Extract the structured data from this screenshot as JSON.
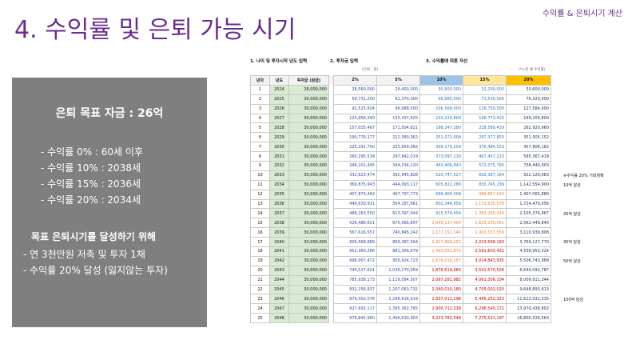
{
  "header": {
    "title": "4. 수익률 및 은퇴 가능 시기",
    "tag": "수익률 & 은퇴시기 계산"
  },
  "panel": {
    "goal": "은퇴 목표 자금 : 26억",
    "scenarios": [
      "- 수익률    0% : 60세 이후",
      "- 수익률 10% : 2038세",
      "- 수익률 15% : 2036세",
      "- 수익률 20% : 2034세"
    ],
    "plan_title": "목표 은퇴시기를 달성하기 위해",
    "plan": [
      "- 연 3천만원 저축 및 투자 1채",
      "- 수익률 20% 달성 (잃지않는 투자)"
    ]
  },
  "sheet": {
    "section1": "1. 나이 및 투자시작 년도 입력",
    "section2": "2. 투자금 입력",
    "section3": "3. 수익률에 따른 자산",
    "note_left": "(단위 : 원)",
    "note_right": "(*노란 셀 수익률)",
    "headers": [
      "년차",
      "년도",
      "투자금 (원금)",
      "2%",
      "5%",
      "10%",
      "15%",
      "20%"
    ],
    "rows": [
      [
        "1",
        "2024",
        "28,000,000",
        "28,560,000",
        "29,400,000",
        "30,800,000",
        "32,200,000",
        "33,600,000"
      ],
      [
        "2",
        "2025",
        "30,000,000",
        "59,731,200",
        "62,370,000",
        "66,880,000",
        "71,530,000",
        "76,320,000"
      ],
      [
        "3",
        "2026",
        "30,000,000",
        "91,525,824",
        "96,988,500",
        "106,568,000",
        "116,759,500",
        "127,584,000"
      ],
      [
        "4",
        "2027",
        "30,000,000",
        "123,956,340",
        "133,337,925",
        "150,224,800",
        "168,773,425",
        "189,100,800"
      ],
      [
        "5",
        "2028",
        "30,000,000",
        "157,035,467",
        "171,504,821",
        "198,247,280",
        "228,589,439",
        "262,920,960"
      ],
      [
        "6",
        "2029",
        "30,000,000",
        "190,776,177",
        "211,580,062",
        "251,072,008",
        "297,377,855",
        "351,505,152"
      ],
      [
        "7",
        "2030",
        "30,000,000",
        "225,191,700",
        "253,659,065",
        "309,179,209",
        "376,484,533",
        "457,806,182"
      ],
      [
        "8",
        "2031",
        "30,000,000",
        "260,295,534",
        "297,842,019",
        "373,097,130",
        "467,457,213",
        "585,367,418"
      ],
      [
        "9",
        "2032",
        "30,000,000",
        "296,101,445",
        "344,234,120",
        "443,406,843",
        "572,075,795",
        "738,440,903"
      ],
      [
        "10",
        "2033",
        "30,000,000",
        "332,623,474",
        "392,945,826",
        "520,747,527",
        "692,387,164",
        "922,129,083"
      ],
      [
        "11",
        "2034",
        "30,000,000",
        "369,875,943",
        "444,093,117",
        "605,822,280",
        "830,745,239",
        "1,142,554,900"
      ],
      [
        "12",
        "2035",
        "30,000,000",
        "407,873,462",
        "497,797,773",
        "699,404,508",
        "989,857,024",
        "1,407,065,880"
      ],
      [
        "13",
        "2036",
        "30,000,000",
        "446,630,931",
        "554,187,661",
        "802,344,959",
        "1,172,835,578",
        "1,724,479,056"
      ],
      [
        "14",
        "2037",
        "30,000,000",
        "486,163,550",
        "613,397,044",
        "915,579,454",
        "1,383,260,914",
        "2,105,374,867"
      ],
      [
        "15",
        "2038",
        "30,000,000",
        "526,486,821",
        "675,566,897",
        "1,040,137,400",
        "1,625,250,051",
        "2,562,449,840"
      ],
      [
        "16",
        "2039",
        "30,000,000",
        "567,616,557",
        "740,845,242",
        "1,177,151,140",
        "1,903,537,559",
        "3,110,939,808"
      ],
      [
        "17",
        "2040",
        "30,000,000",
        "609,568,889",
        "809,387,504",
        "1,327,866,253",
        "2,223,568,193",
        "3,769,127,770"
      ],
      [
        "18",
        "2041",
        "30,000,000",
        "652,360,266",
        "881,356,879",
        "1,493,652,879",
        "2,591,603,422",
        "4,558,953,324"
      ],
      [
        "19",
        "2042",
        "30,000,000",
        "696,007,472",
        "956,924,723",
        "1,676,018,167",
        "3,014,843,935",
        "5,506,743,989"
      ],
      [
        "20",
        "2043",
        "30,000,000",
        "740,527,621",
        "1,036,270,959",
        "1,876,619,983",
        "3,501,570,526",
        "6,644,092,787"
      ],
      [
        "21",
        "2044",
        "30,000,000",
        "785,938,173",
        "1,119,584,507",
        "2,097,281,982",
        "4,061,306,104",
        "8,009,911,344"
      ],
      [
        "22",
        "2045",
        "30,000,000",
        "832,256,937",
        "1,207,063,732",
        "2,340,010,180",
        "4,705,002,020",
        "9,648,893,613"
      ],
      [
        "23",
        "2046",
        "30,000,000",
        "879,502,076",
        "1,298,916,919",
        "2,607,011,198",
        "5,445,252,323",
        "11,612,032,335"
      ],
      [
        "24",
        "2047",
        "30,000,000",
        "927,692,117",
        "1,395,362,765",
        "2,900,712,318",
        "6,296,540,172",
        "13,970,438,802"
      ],
      [
        "25",
        "2048",
        "30,000,000",
        "976,845,960",
        "1,496,630,903",
        "3,223,783,549",
        "7,275,521,197",
        "16,800,526,563"
      ]
    ],
    "annotations": [
      {
        "row": 10,
        "text": "※수익률 20% 기대정확"
      },
      {
        "row": 11,
        "text": "10억 달성"
      },
      {
        "row": 14,
        "text": "20억 달성"
      },
      {
        "row": 17,
        "text": "30억 달성"
      },
      {
        "row": 19,
        "text": "50억 달성"
      },
      {
        "row": 23,
        "text": "100억 달성"
      }
    ]
  },
  "colors": {
    "title": "#6a2c8f",
    "panel_bg": "#7f7f7f",
    "col_2": "#2e4a9e",
    "col_5": "#2e4a9e",
    "col_10_light": "#2e75b6",
    "col_10_dark": "#c00000",
    "col_15_light": "#2e75b6",
    "col_15_mid": "#ed7d31",
    "col_15_dark": "#c00000",
    "col_20": "#1f3864"
  }
}
